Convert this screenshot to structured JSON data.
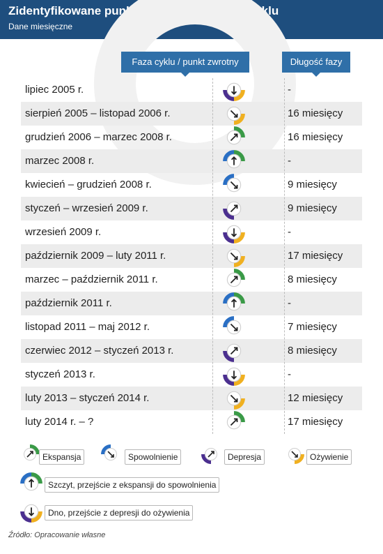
{
  "header": {
    "title": "Zidentyfikowane punkty zwrotne oraz fazy cyklu",
    "subtitle": "Dane miesięczne"
  },
  "columns": {
    "phase": "Faza cyklu / punkt zwrotny",
    "length": "Długość fazy"
  },
  "colors": {
    "header_bg": "#1e4e7e",
    "column_header_bg": "#2f6fa8",
    "expansion": "#3a9a47",
    "slowdown": "#2a6fc4",
    "depression": "#4b2f8f",
    "recovery": "#f0b020",
    "row_shade": "#ececec"
  },
  "rows": [
    {
      "period": "lipiec 2005 r.",
      "phase_icon": "trough-icon",
      "length": "-"
    },
    {
      "period": "sierpień 2005 – listopad 2006 r.",
      "phase_icon": "recovery-icon",
      "length": "16 miesięcy"
    },
    {
      "period": "grudzień 2006 – marzec 2008 r.",
      "phase_icon": "expansion-icon",
      "length": "16 miesięcy"
    },
    {
      "period": "marzec 2008 r.",
      "phase_icon": "peak-icon",
      "length": "-"
    },
    {
      "period": "kwiecień – grudzień 2008 r.",
      "phase_icon": "slowdown-icon",
      "length": "9 miesięcy"
    },
    {
      "period": "styczeń – wrzesień 2009 r.",
      "phase_icon": "depression-icon",
      "length": "9 miesięcy"
    },
    {
      "period": "wrzesień 2009 r.",
      "phase_icon": "trough-icon",
      "length": "-"
    },
    {
      "period": "październik 2009 – luty 2011 r.",
      "phase_icon": "recovery-icon",
      "length": "17 miesięcy"
    },
    {
      "period": "marzec – październik 2011 r.",
      "phase_icon": "expansion-icon",
      "length": "8 miesięcy"
    },
    {
      "period": "październik 2011 r.",
      "phase_icon": "peak-icon",
      "length": "-"
    },
    {
      "period": "listopad 2011 – maj 2012 r.",
      "phase_icon": "slowdown-icon",
      "length": "7 miesięcy"
    },
    {
      "period": "czerwiec 2012 – styczeń 2013 r.",
      "phase_icon": "depression-icon",
      "length": "8 miesięcy"
    },
    {
      "period": "styczeń 2013 r.",
      "phase_icon": "trough-icon",
      "length": "-"
    },
    {
      "period": "luty 2013 – styczeń 2014 r.",
      "phase_icon": "recovery-icon",
      "length": "12 miesięcy"
    },
    {
      "period": "luty 2014 r. – ?",
      "phase_icon": "expansion-icon",
      "length": "17 miesięcy"
    }
  ],
  "legend": {
    "expansion": "Ekspansja",
    "slowdown": "Spowolnienie",
    "depression": "Depresja",
    "recovery": "Ożywienie",
    "peak": "Szczyt, przejście z ekspansji do spowolnienia",
    "trough": "Dno, przejście z depresji do ożywienia"
  },
  "source": "Źródło: Opracowanie własne"
}
